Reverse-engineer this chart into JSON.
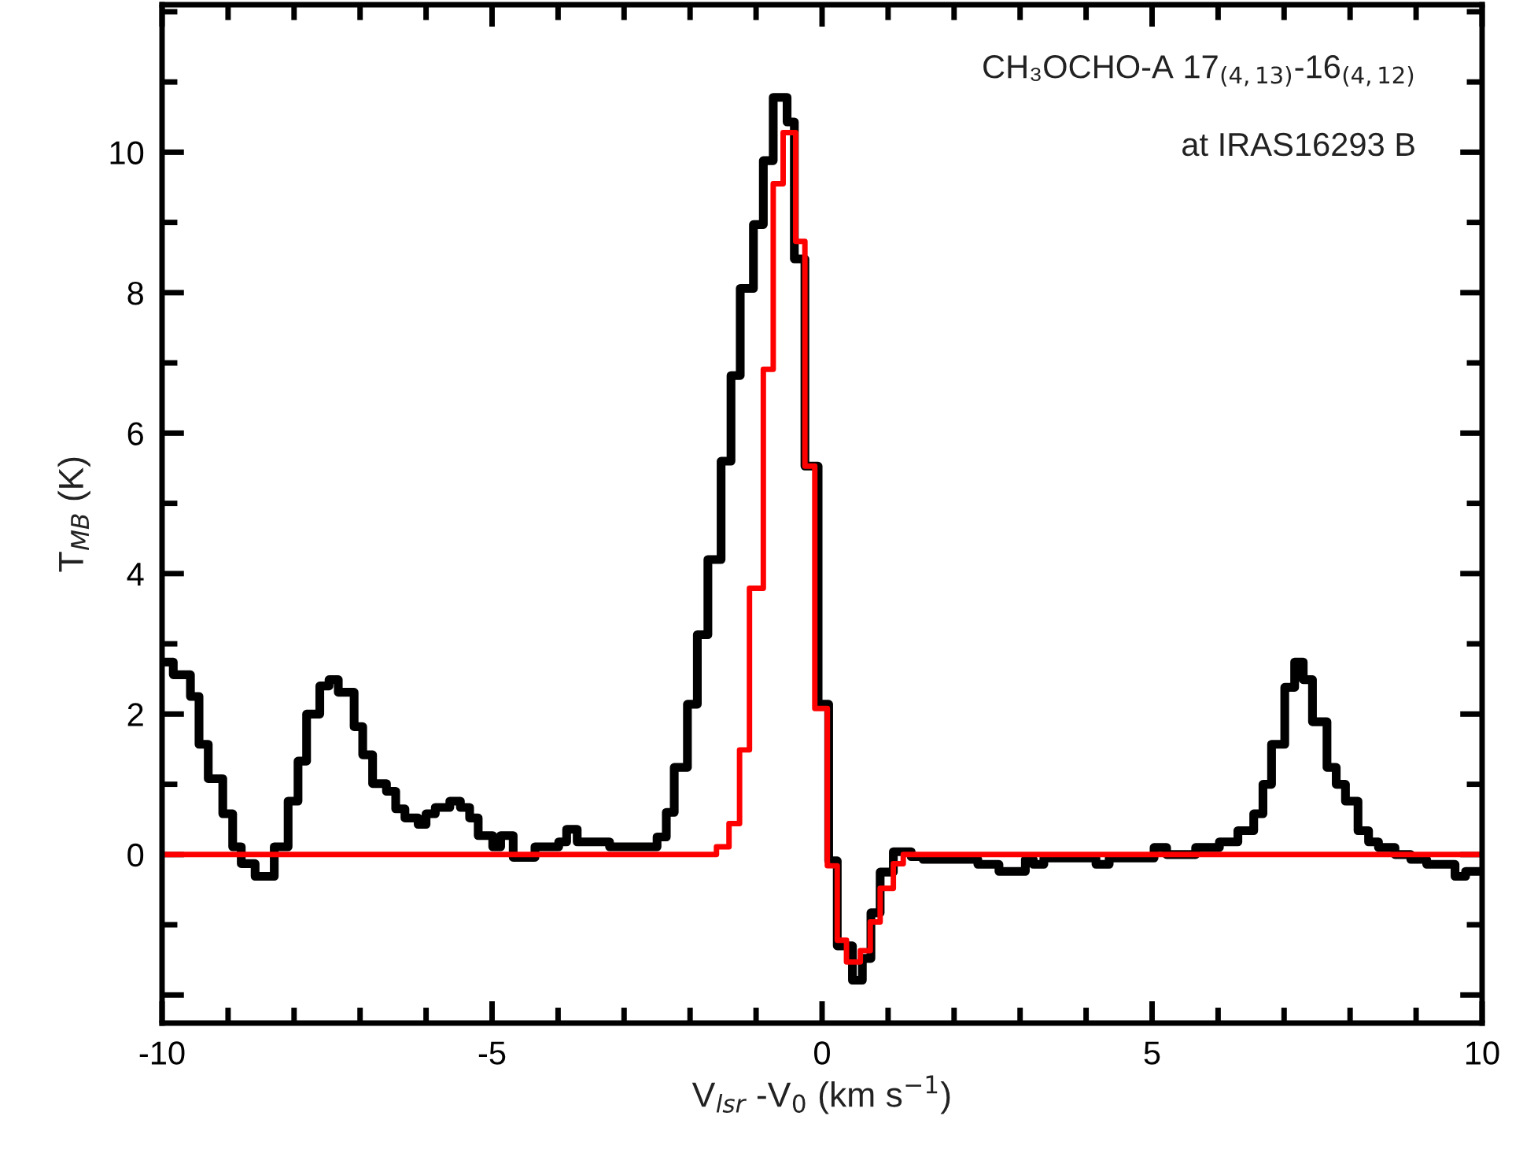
{
  "chart_data": {
    "type": "step",
    "xlabel": "V$_{lsr}$ -V$_{0}$ (km s$^{−1}$)",
    "ylabel": "T$_{MB}$ (K)",
    "annotations": [
      "CH₃OCHO-A 17$_{(4,13)}$-16$_{(4,12)}$",
      "at IRAS16293 B"
    ],
    "xlim": [
      -10,
      10
    ],
    "xticks": [
      -10,
      -5,
      0,
      5,
      10
    ],
    "ylim": [
      -2.4,
      12.1
    ],
    "yticks": [
      {
        "value": -2,
        "label": null
      },
      0,
      2,
      4,
      6,
      8,
      10
    ],
    "grid": false,
    "legend": false,
    "series": [
      {
        "color": "#000000",
        "x": [
          -10.0,
          -9.83,
          -9.57,
          -9.44,
          -9.3,
          -9.08,
          -8.93,
          -8.8,
          -8.59,
          -8.3,
          -8.09,
          -7.94,
          -7.81,
          -7.61,
          -7.47,
          -7.33,
          -7.09,
          -6.96,
          -6.81,
          -6.6,
          -6.46,
          -6.32,
          -6.12,
          -6.0,
          -5.86,
          -5.64,
          -5.48,
          -5.34,
          -5.21,
          -4.99,
          -4.87,
          -4.68,
          -4.35,
          -3.99,
          -3.87,
          -3.71,
          -3.22,
          -2.5,
          -2.36,
          -2.24,
          -2.04,
          -1.89,
          -1.73,
          -1.53,
          -1.38,
          -1.24,
          -1.04,
          -0.89,
          -0.74,
          -0.53,
          -0.42,
          -0.26,
          -0.06,
          0.1,
          0.23,
          0.46,
          0.61,
          0.74,
          0.88,
          1.08,
          1.35,
          1.53,
          2.36,
          2.68,
          3.08,
          3.2,
          3.36,
          4.15,
          4.35,
          5.03,
          5.22,
          5.66,
          6.02,
          6.3,
          6.54,
          6.68,
          6.81,
          7.01,
          7.16,
          7.29,
          7.43,
          7.65,
          7.79,
          7.93,
          8.12,
          8.28,
          8.43,
          8.68,
          8.92,
          9.16,
          9.59,
          9.75,
          10.0
        ],
        "values": [
          2.74,
          2.56,
          2.25,
          1.57,
          1.08,
          0.58,
          0.11,
          -0.13,
          -0.31,
          0.11,
          0.76,
          1.33,
          2.0,
          2.4,
          2.49,
          2.31,
          1.82,
          1.42,
          1.01,
          0.9,
          0.65,
          0.52,
          0.43,
          0.58,
          0.67,
          0.76,
          0.67,
          0.52,
          0.27,
          0.11,
          0.27,
          -0.04,
          0.11,
          0.18,
          0.36,
          0.18,
          0.11,
          0.25,
          0.6,
          1.24,
          2.14,
          3.13,
          4.2,
          5.6,
          6.82,
          8.06,
          8.97,
          9.88,
          10.78,
          10.43,
          8.48,
          5.53,
          2.14,
          -0.09,
          -1.3,
          -1.79,
          -1.48,
          -0.83,
          -0.25,
          0.04,
          -0.03,
          -0.07,
          -0.14,
          -0.24,
          -0.07,
          -0.14,
          -0.05,
          -0.14,
          -0.05,
          0.1,
          0.0,
          0.1,
          0.18,
          0.34,
          0.58,
          1.0,
          1.57,
          2.38,
          2.74,
          2.49,
          1.89,
          1.24,
          1.0,
          0.76,
          0.34,
          0.18,
          0.1,
          0.0,
          -0.07,
          -0.14,
          -0.31,
          -0.24,
          -0.24
        ]
      },
      {
        "color": "#ff0000",
        "x": [
          -10.0,
          -1.6,
          -1.41,
          -1.25,
          -1.1,
          -0.89,
          -0.74,
          -0.59,
          -0.4,
          -0.26,
          -0.11,
          0.08,
          0.23,
          0.37,
          0.58,
          0.73,
          0.88,
          1.08,
          1.23,
          10.0
        ],
        "values": [
          0.0,
          0.11,
          0.44,
          1.49,
          3.79,
          6.91,
          9.55,
          10.28,
          8.73,
          5.53,
          2.08,
          -0.16,
          -1.22,
          -1.53,
          -1.37,
          -0.96,
          -0.48,
          -0.13,
          0.0,
          0.0
        ]
      }
    ]
  }
}
